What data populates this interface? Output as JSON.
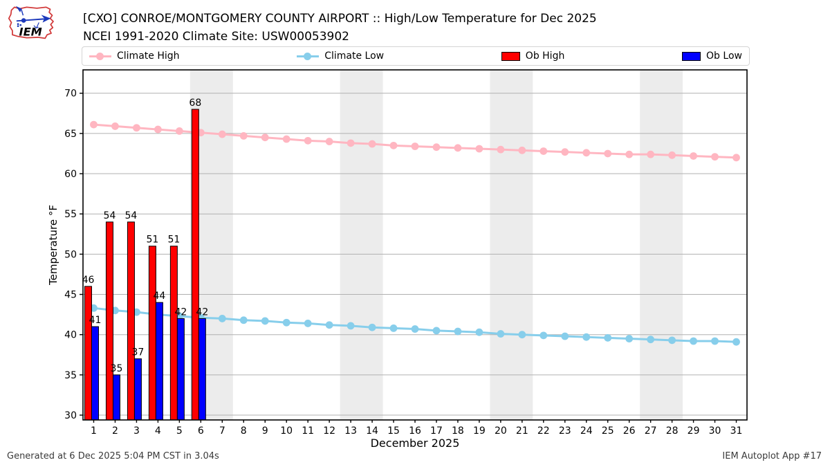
{
  "header": {
    "title": "[CXO] CONROE/MONTGOMERY COUNTY AIRPORT :: High/Low Temperature for Dec 2025",
    "subtitle": "NCEI 1991-2020 Climate Site: USW00053902",
    "logo_text": "IEM"
  },
  "legend": {
    "items": [
      {
        "label": "Climate High",
        "type": "line",
        "color": "#FFB6C1"
      },
      {
        "label": "Climate Low",
        "type": "line",
        "color": "#87CEEB"
      },
      {
        "label": "Ob High",
        "type": "bar",
        "color": "#FF0000"
      },
      {
        "label": "Ob Low",
        "type": "bar",
        "color": "#0000FF"
      }
    ]
  },
  "footer": {
    "left": "Generated at 6 Dec 2025 5:04 PM CST in 3.04s",
    "right": "IEM Autoplot App #17"
  },
  "chart_data": {
    "type": "bar",
    "title": "[CXO] CONROE/MONTGOMERY COUNTY AIRPORT :: High/Low Temperature for Dec 2025",
    "subtitle": "NCEI 1991-2020 Climate Site: USW00053902",
    "xlabel": "December 2025",
    "ylabel": "Temperature °F",
    "xlim": [
      0.5,
      31.5
    ],
    "ylim": [
      29.4,
      72.9
    ],
    "xticks": [
      1,
      2,
      3,
      4,
      5,
      6,
      7,
      8,
      9,
      10,
      11,
      12,
      13,
      14,
      15,
      16,
      17,
      18,
      19,
      20,
      21,
      22,
      23,
      24,
      25,
      26,
      27,
      28,
      29,
      30,
      31
    ],
    "yticks": [
      30,
      35,
      40,
      45,
      50,
      55,
      60,
      65,
      70
    ],
    "grid": "horizontal-only",
    "gridline_color": "#b0b0b0",
    "weekend_band_color": "#ececec",
    "weekend_band_ranges": [
      [
        5.5,
        7.5
      ],
      [
        12.5,
        14.5
      ],
      [
        19.5,
        21.5
      ],
      [
        26.5,
        28.5
      ]
    ],
    "days": [
      1,
      2,
      3,
      4,
      5,
      6,
      7,
      8,
      9,
      10,
      11,
      12,
      13,
      14,
      15,
      16,
      17,
      18,
      19,
      20,
      21,
      22,
      23,
      24,
      25,
      26,
      27,
      28,
      29,
      30,
      31
    ],
    "series": [
      {
        "name": "Climate High",
        "type": "line",
        "color": "#FFB6C1",
        "values": [
          66.1,
          65.9,
          65.7,
          65.5,
          65.3,
          65.1,
          64.9,
          64.7,
          64.5,
          64.3,
          64.1,
          64.0,
          63.8,
          63.7,
          63.5,
          63.4,
          63.3,
          63.2,
          63.1,
          63.0,
          62.9,
          62.8,
          62.7,
          62.6,
          62.5,
          62.4,
          62.4,
          62.3,
          62.2,
          62.1,
          62.0
        ]
      },
      {
        "name": "Climate Low",
        "type": "line",
        "color": "#87CEEB",
        "values": [
          43.3,
          43.0,
          42.8,
          42.5,
          42.3,
          42.1,
          42.0,
          41.8,
          41.7,
          41.5,
          41.4,
          41.2,
          41.1,
          40.9,
          40.8,
          40.7,
          40.5,
          40.4,
          40.3,
          40.1,
          40.0,
          39.9,
          39.8,
          39.7,
          39.6,
          39.5,
          39.4,
          39.3,
          39.2,
          39.2,
          39.1
        ]
      },
      {
        "name": "Ob High",
        "type": "bar",
        "color": "#FF0000",
        "x": [
          1,
          2,
          3,
          4,
          5,
          6
        ],
        "values": [
          46,
          54,
          54,
          51,
          51,
          68
        ]
      },
      {
        "name": "Ob Low",
        "type": "bar",
        "color": "#0000FF",
        "x": [
          1,
          2,
          3,
          4,
          5,
          6
        ],
        "values": [
          41,
          35,
          37,
          44,
          42,
          42
        ]
      }
    ]
  }
}
